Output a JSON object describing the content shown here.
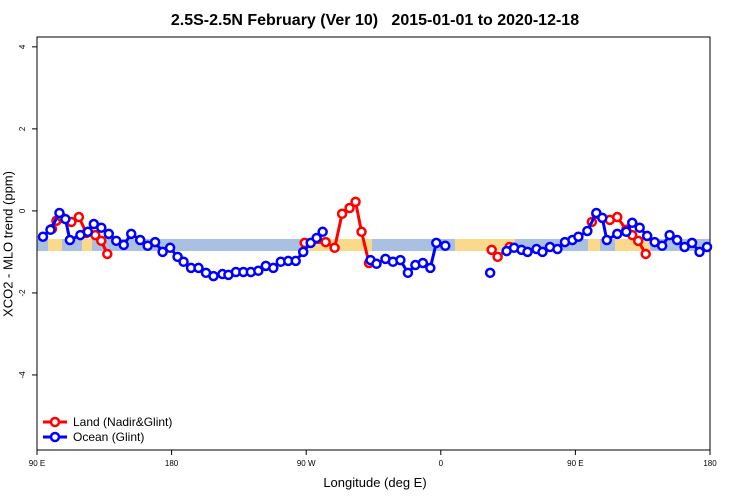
{
  "chart_data": {
    "type": "line",
    "title": "2.5S-2.5N February (Ver 10)   2015-01-01 to 2020-12-18",
    "x_label": "Longitude (deg E)",
    "y_label": "XCO2 - MLO trend (ppm)",
    "xlim": [
      90,
      540
    ],
    "ylim": [
      -5.83,
      4.24
    ],
    "xticks": [
      {
        "value": 90,
        "label": "90 E"
      },
      180,
      {
        "value": 270,
        "label": "90 W"
      },
      {
        "value": 360,
        "label": "0"
      },
      {
        "value": 450,
        "label": "90 E"
      },
      {
        "value": 540,
        "label": "180"
      }
    ],
    "yticks": [
      -4,
      -2,
      0,
      2,
      4
    ],
    "legend": "bottom-left",
    "series": [
      {
        "name": "Land (Nadir&Glint)",
        "color": "#ff0000",
        "x": [
          100,
          103,
          107,
          113,
          118,
          123,
          129,
          133,
          137,
          null,
          269,
          283,
          289,
          294,
          299,
          303,
          307,
          312,
          null,
          394,
          398,
          406,
          null,
          461,
          464,
          473,
          478,
          484,
          488,
          492,
          497
        ],
        "values": [
          -0.44,
          -0.24,
          -0.17,
          -0.27,
          -0.15,
          -0.54,
          -0.59,
          -0.73,
          -1.05,
          null,
          -0.78,
          -0.76,
          -0.9,
          -0.07,
          0.07,
          0.22,
          -0.51,
          -1.27,
          null,
          -0.95,
          -1.12,
          -0.88,
          null,
          -0.27,
          -0.07,
          -0.22,
          -0.15,
          -0.46,
          -0.59,
          -0.73,
          -1.05
        ]
      },
      {
        "name": "Ocean (Glint)",
        "color": "#0000ff",
        "x": [
          94,
          99,
          105,
          109,
          112,
          119,
          124,
          128,
          133,
          138,
          143,
          148,
          153,
          159,
          164,
          169,
          174,
          179,
          184,
          188,
          193,
          198,
          203,
          208,
          214,
          218,
          223,
          228,
          233,
          238,
          243,
          248,
          253,
          258,
          263,
          268,
          273,
          277,
          281,
          null,
          313,
          317,
          323,
          328,
          333,
          338,
          343,
          348,
          353,
          357,
          363,
          null,
          393,
          null,
          404,
          409,
          414,
          418,
          424,
          428,
          433,
          438,
          443,
          448,
          452,
          458,
          464,
          468,
          471,
          478,
          484,
          488,
          493,
          498,
          503,
          508,
          513,
          518,
          523,
          528,
          533,
          538
        ],
        "values": [
          -0.63,
          -0.46,
          -0.05,
          -0.2,
          -0.71,
          -0.59,
          -0.51,
          -0.32,
          -0.41,
          -0.56,
          -0.73,
          -0.83,
          -0.56,
          -0.71,
          -0.85,
          -0.76,
          -1.0,
          -0.9,
          -1.12,
          -1.24,
          -1.39,
          -1.39,
          -1.51,
          -1.59,
          -1.54,
          -1.56,
          -1.49,
          -1.49,
          -1.49,
          -1.46,
          -1.34,
          -1.39,
          -1.24,
          -1.22,
          -1.22,
          -1.0,
          -0.78,
          -0.66,
          -0.51,
          null,
          -1.2,
          -1.29,
          -1.17,
          -1.24,
          -1.2,
          -1.51,
          -1.32,
          -1.27,
          -1.39,
          -0.78,
          -0.85,
          null,
          -1.51,
          null,
          -0.98,
          -0.9,
          -0.95,
          -1.0,
          -0.93,
          -1.0,
          -0.88,
          -0.93,
          -0.76,
          -0.71,
          -0.63,
          -0.49,
          -0.05,
          -0.17,
          -0.71,
          -0.56,
          -0.51,
          -0.29,
          -0.41,
          -0.61,
          -0.76,
          -0.85,
          -0.59,
          -0.71,
          -0.88,
          -0.78,
          -1.0,
          -0.88
        ]
      }
    ]
  }
}
